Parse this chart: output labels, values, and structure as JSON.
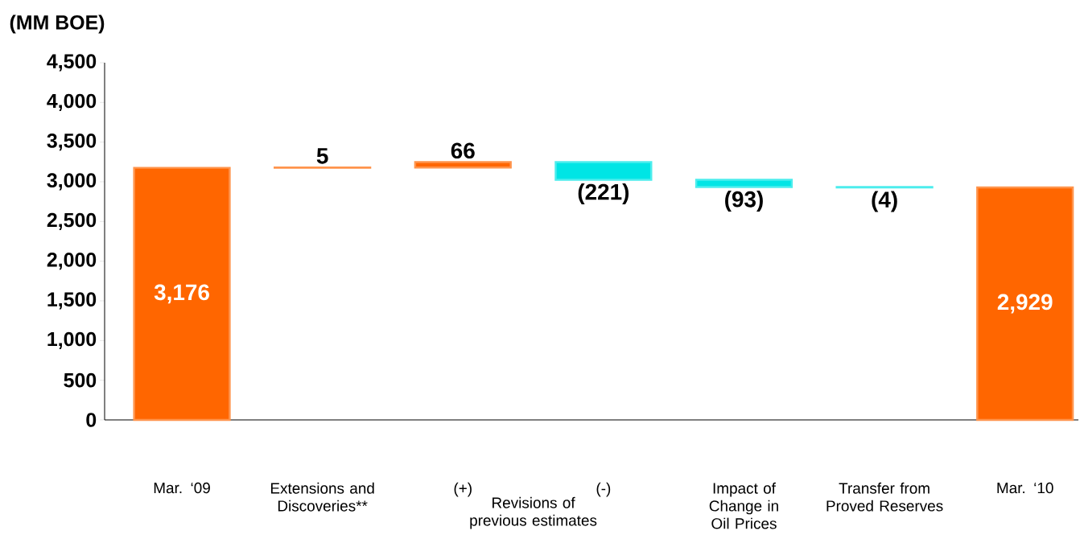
{
  "chart_data": {
    "type": "bar",
    "ylabel": "(MM BOE)",
    "categories": [
      "Mar. ‘09",
      "Extensions and Discoveries**",
      "(+)",
      "(-)",
      "Impact of Change in Oil Prices",
      "Transfer from Proved Reserves",
      "Mar. ‘10"
    ],
    "values": [
      3176,
      5,
      66,
      -221,
      -93,
      -4,
      2929
    ],
    "base": [
      0,
      3176,
      3181,
      3247,
      3026,
      2933,
      0
    ],
    "colors": [
      "#ff6600",
      "#ff6600",
      "#ff6600",
      "#00e5e5",
      "#00e5e5",
      "#00e5e5",
      "#ff6600"
    ],
    "value_labels": [
      "3,176",
      "5",
      "66",
      "(221)",
      "(93)",
      "(4)",
      "2,929"
    ],
    "ylim": [
      0,
      4500
    ],
    "yticks": [
      {
        "value": 0,
        "label": "0"
      },
      {
        "value": 500,
        "label": "500"
      },
      {
        "value": 1000,
        "label": "1,000"
      },
      {
        "value": 1500,
        "label": "1,500"
      },
      {
        "value": 2000,
        "label": "2,000"
      },
      {
        "value": 2500,
        "label": "2,500"
      },
      {
        "value": 3000,
        "label": "3,000"
      },
      {
        "value": 3500,
        "label": "3,500"
      },
      {
        "value": 4000,
        "label": "4,000"
      },
      {
        "value": 4500,
        "label": "4,500"
      }
    ],
    "annotations": [
      "Revisions of previous estimates"
    ],
    "grid": false
  }
}
